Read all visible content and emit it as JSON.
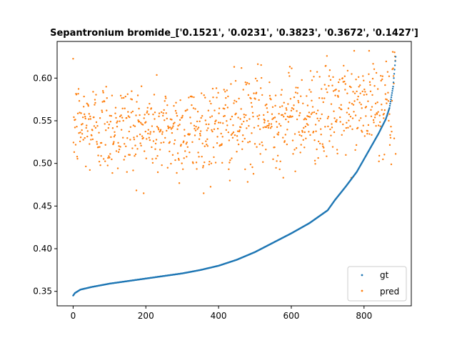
{
  "chart_data": {
    "type": "scatter",
    "title": "Sepantronium bromide_['0.1521', '0.0231', '0.3823', '0.3672', '0.1427']",
    "xlabel": "",
    "ylabel": "",
    "xlim": [
      -44,
      930
    ],
    "ylim": [
      0.333,
      0.643
    ],
    "x_ticks": [
      0,
      200,
      400,
      600,
      800
    ],
    "y_ticks": [
      0.35,
      0.4,
      0.45,
      0.5,
      0.55,
      0.6
    ],
    "y_tick_labels": [
      "0.35",
      "0.40",
      "0.45",
      "0.50",
      "0.55",
      "0.60"
    ],
    "grid": false,
    "legend_position": "lower-right",
    "n_points": 888,
    "series": [
      {
        "name": "gt",
        "color": "#1f77b4",
        "curve_profile": [
          [
            0,
            0.345
          ],
          [
            5,
            0.348
          ],
          [
            20,
            0.352
          ],
          [
            50,
            0.355
          ],
          [
            100,
            0.359
          ],
          [
            150,
            0.362
          ],
          [
            200,
            0.365
          ],
          [
            250,
            0.368
          ],
          [
            300,
            0.371
          ],
          [
            350,
            0.375
          ],
          [
            400,
            0.38
          ],
          [
            450,
            0.387
          ],
          [
            500,
            0.396
          ],
          [
            550,
            0.407
          ],
          [
            600,
            0.418
          ],
          [
            650,
            0.43
          ],
          [
            700,
            0.445
          ],
          [
            720,
            0.457
          ],
          [
            750,
            0.473
          ],
          [
            780,
            0.49
          ],
          [
            800,
            0.505
          ],
          [
            820,
            0.52
          ],
          [
            840,
            0.535
          ],
          [
            860,
            0.552
          ],
          [
            870,
            0.565
          ],
          [
            880,
            0.59
          ],
          [
            887,
            0.625
          ]
        ]
      },
      {
        "name": "pred",
        "color": "#ff7f0e",
        "trend_profile": [
          [
            0,
            0.545
          ],
          [
            300,
            0.537
          ],
          [
            600,
            0.555
          ],
          [
            887,
            0.57
          ]
        ],
        "noise_sd": 0.028,
        "range": [
          0.465,
          0.632
        ]
      }
    ]
  },
  "legend": {
    "items": [
      {
        "label": "gt",
        "color": "#1f77b4"
      },
      {
        "label": "pred",
        "color": "#ff7f0e"
      }
    ]
  }
}
